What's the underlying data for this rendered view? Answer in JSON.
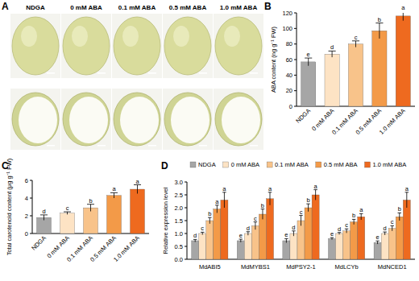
{
  "panel_a": {
    "panel": "A",
    "labels": [
      "NDGA",
      "0 mM ABA",
      "0.1 mM ABA",
      "0.5 mM ABA",
      "1.0 mM ABA"
    ]
  },
  "chart_data": [
    {
      "type": "bar",
      "panel": "B",
      "ylabel": "ABA content (ng g⁻¹ FW)",
      "categories": [
        "NDGA",
        "0 mM ABA",
        "0.1 mM ABA",
        "0.5 mM ABA",
        "1.0 mM ABA"
      ],
      "values": [
        57,
        67,
        80,
        97,
        116
      ],
      "errors": [
        5,
        4,
        4,
        10,
        6
      ],
      "letters": [
        "e",
        "d",
        "c",
        "b",
        "a"
      ],
      "colors": [
        "#a6a6a6",
        "#fde3c4",
        "#f8c38a",
        "#f39a48",
        "#ee6a1f"
      ],
      "ylim": [
        0,
        120
      ],
      "yticks": [
        0,
        20,
        40,
        60,
        80,
        100,
        120
      ]
    },
    {
      "type": "bar",
      "panel": "C",
      "ylabel": "Total carotenoid content (μg g⁻¹ FW)",
      "categories": [
        "NDGA",
        "0 mM ABA",
        "0.1 mM ABA",
        "0.5 mM ABA",
        "1.0 mM ABA"
      ],
      "values": [
        1.8,
        2.3,
        2.9,
        4.3,
        5.0
      ],
      "errors": [
        0.3,
        0.15,
        0.4,
        0.3,
        0.5
      ],
      "letters": [
        "d",
        "c",
        "b",
        "a",
        "a"
      ],
      "colors": [
        "#a6a6a6",
        "#fde3c4",
        "#f8c38a",
        "#f39a48",
        "#ee6a1f"
      ],
      "ylim": [
        0,
        6
      ],
      "yticks": [
        0,
        2,
        4,
        6
      ]
    },
    {
      "type": "bar",
      "panel": "D",
      "ylabel": "Relative expression level",
      "categories": [
        "MdABI5",
        "MdMYBS1",
        "MdPSY2-1",
        "MdLCYb",
        "MdNCED1"
      ],
      "series": [
        {
          "name": "NDGA",
          "color": "#a6a6a6",
          "values": [
            0.72,
            0.72,
            0.72,
            0.8,
            0.65
          ],
          "errors": [
            0.05,
            0.06,
            0.08,
            0.04,
            0.06
          ],
          "letters": [
            "d",
            "e",
            "e",
            "e",
            "e"
          ]
        },
        {
          "name": "0 mM ABA",
          "color": "#fde3c4",
          "values": [
            1.0,
            1.0,
            1.0,
            1.0,
            1.0
          ],
          "errors": [
            0.05,
            0.07,
            0.1,
            0.04,
            0.06
          ],
          "letters": [
            "c",
            "d",
            "d",
            "d",
            "d"
          ]
        },
        {
          "name": "0.1 mM ABA",
          "color": "#f8c38a",
          "values": [
            1.5,
            1.3,
            1.5,
            1.1,
            1.2
          ],
          "errors": [
            0.12,
            0.15,
            0.2,
            0.08,
            0.1
          ],
          "letters": [
            "b",
            "c",
            "c",
            "c",
            "c"
          ]
        },
        {
          "name": "0.5 mM ABA",
          "color": "#f39a48",
          "values": [
            1.95,
            1.75,
            2.0,
            1.45,
            1.65
          ],
          "errors": [
            0.15,
            0.2,
            0.15,
            0.1,
            0.15
          ],
          "letters": [
            "a",
            "b",
            "b",
            "b",
            "b"
          ]
        },
        {
          "name": "1.0 mM ABA",
          "color": "#ee6a1f",
          "values": [
            2.3,
            2.35,
            2.5,
            1.65,
            2.3
          ],
          "errors": [
            0.3,
            0.25,
            0.2,
            0.12,
            0.3
          ],
          "letters": [
            "a",
            "a",
            "a",
            "a",
            "a"
          ]
        }
      ],
      "legend": "top",
      "ylim": [
        0,
        3
      ],
      "yticks": [
        {
          "value": 0,
          "label": "0.0"
        },
        0.5,
        {
          "value": 1,
          "label": "1.0"
        },
        1.5,
        {
          "value": 2,
          "label": "2.0"
        },
        2.5,
        {
          "value": 3,
          "label": "3.0"
        }
      ]
    }
  ]
}
